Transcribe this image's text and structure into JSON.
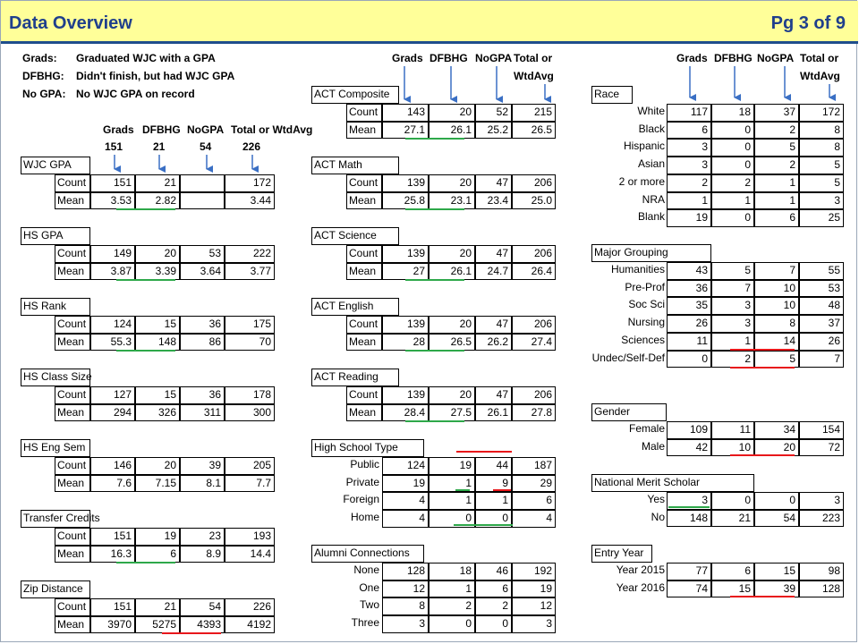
{
  "header": {
    "title": "Data Overview",
    "page": "Pg 3 of 9"
  },
  "legend": [
    {
      "term": "Grads:",
      "def": "Graduated WJC with a GPA"
    },
    {
      "term": "DFBHG:",
      "def": "Didn't finish, but had WJC GPA"
    },
    {
      "term": "No GPA:",
      "def": "No WJC GPA on record"
    }
  ],
  "left_headers": {
    "grads": "Grads",
    "dfbhg": "DFBHG",
    "nogpa": "NoGPA",
    "total": "Total or WtdAvg",
    "n_grads": "151",
    "n_dfbhg": "21",
    "n_nogpa": "54",
    "n_total": "226"
  },
  "mid_headers": {
    "grads": "Grads",
    "dfbhg": "DFBHG",
    "nogpa": "NoGPA",
    "total1": "Total or",
    "total2": "WtdAvg"
  },
  "right_headers": {
    "grads": "Grads",
    "dfbhg": "DFBHG",
    "nogpa": "NoGPA",
    "total1": "Total or",
    "total2": "WtdAvg"
  },
  "col1": [
    {
      "title": "WJC GPA",
      "rows": [
        {
          "label": "Count",
          "v": [
            "151",
            "21",
            "",
            "172"
          ]
        },
        {
          "label": "Mean",
          "v": [
            "3.53",
            "2.82",
            "",
            "3.44"
          ]
        }
      ]
    },
    {
      "title": "HS GPA",
      "rows": [
        {
          "label": "Count",
          "v": [
            "149",
            "20",
            "53",
            "222"
          ]
        },
        {
          "label": "Mean",
          "v": [
            "3.87",
            "3.39",
            "3.64",
            "3.77"
          ]
        }
      ]
    },
    {
      "title": "HS Rank",
      "rows": [
        {
          "label": "Count",
          "v": [
            "124",
            "15",
            "36",
            "175"
          ]
        },
        {
          "label": "Mean",
          "v": [
            "55.3",
            "148",
            "86",
            "70"
          ]
        }
      ]
    },
    {
      "title": "HS Class Size",
      "rows": [
        {
          "label": "Count",
          "v": [
            "127",
            "15",
            "36",
            "178"
          ]
        },
        {
          "label": "Mean",
          "v": [
            "294",
            "326",
            "311",
            "300"
          ]
        }
      ]
    },
    {
      "title": "HS Eng Sem",
      "rows": [
        {
          "label": "Count",
          "v": [
            "146",
            "20",
            "39",
            "205"
          ]
        },
        {
          "label": "Mean",
          "v": [
            "7.6",
            "7.15",
            "8.1",
            "7.7"
          ]
        }
      ]
    },
    {
      "title": "Transfer Credits",
      "rows": [
        {
          "label": "Count",
          "v": [
            "151",
            "19",
            "23",
            "193"
          ]
        },
        {
          "label": "Mean",
          "v": [
            "16.3",
            "6",
            "8.9",
            "14.4"
          ]
        }
      ]
    },
    {
      "title": "Zip Distance",
      "rows": [
        {
          "label": "Count",
          "v": [
            "151",
            "21",
            "54",
            "226"
          ]
        },
        {
          "label": "Mean",
          "v": [
            "3970",
            "5275",
            "4393",
            "4192"
          ]
        }
      ]
    }
  ],
  "col2": [
    {
      "title": "ACT Composite",
      "rows": [
        {
          "label": "Count",
          "v": [
            "143",
            "20",
            "52",
            "215"
          ]
        },
        {
          "label": "Mean",
          "v": [
            "27.1",
            "26.1",
            "25.2",
            "26.5"
          ]
        }
      ]
    },
    {
      "title": "ACT Math",
      "rows": [
        {
          "label": "Count",
          "v": [
            "139",
            "20",
            "47",
            "206"
          ]
        },
        {
          "label": "Mean",
          "v": [
            "25.8",
            "23.1",
            "23.4",
            "25.0"
          ]
        }
      ]
    },
    {
      "title": "ACT Science",
      "rows": [
        {
          "label": "Count",
          "v": [
            "139",
            "20",
            "47",
            "206"
          ]
        },
        {
          "label": "Mean",
          "v": [
            "27",
            "26.1",
            "24.7",
            "26.4"
          ]
        }
      ]
    },
    {
      "title": "ACT English",
      "rows": [
        {
          "label": "Count",
          "v": [
            "139",
            "20",
            "47",
            "206"
          ]
        },
        {
          "label": "Mean",
          "v": [
            "28",
            "26.5",
            "26.2",
            "27.4"
          ]
        }
      ]
    },
    {
      "title": "ACT Reading",
      "rows": [
        {
          "label": "Count",
          "v": [
            "139",
            "20",
            "47",
            "206"
          ]
        },
        {
          "label": "Mean",
          "v": [
            "28.4",
            "27.5",
            "26.1",
            "27.8"
          ]
        }
      ]
    },
    {
      "title": "High School Type",
      "rows": [
        {
          "label": "Public",
          "v": [
            "124",
            "19",
            "44",
            "187"
          ]
        },
        {
          "label": "Private",
          "v": [
            "19",
            "1",
            "9",
            "29"
          ]
        },
        {
          "label": "Foreign",
          "v": [
            "4",
            "1",
            "1",
            "6"
          ]
        },
        {
          "label": "Home",
          "v": [
            "4",
            "0",
            "0",
            "4"
          ]
        }
      ]
    },
    {
      "title": "Alumni Connections",
      "rows": [
        {
          "label": "None",
          "v": [
            "128",
            "18",
            "46",
            "192"
          ]
        },
        {
          "label": "One",
          "v": [
            "12",
            "1",
            "6",
            "19"
          ]
        },
        {
          "label": "Two",
          "v": [
            "8",
            "2",
            "2",
            "12"
          ]
        },
        {
          "label": "Three",
          "v": [
            "3",
            "0",
            "0",
            "3"
          ]
        }
      ]
    }
  ],
  "col3": [
    {
      "title": "Race",
      "rows": [
        {
          "label": "White",
          "v": [
            "117",
            "18",
            "37",
            "172"
          ]
        },
        {
          "label": "Black",
          "v": [
            "6",
            "0",
            "2",
            "8"
          ]
        },
        {
          "label": "Hispanic",
          "v": [
            "3",
            "0",
            "5",
            "8"
          ]
        },
        {
          "label": "Asian",
          "v": [
            "3",
            "0",
            "2",
            "5"
          ]
        },
        {
          "label": "2 or more",
          "v": [
            "2",
            "2",
            "1",
            "5"
          ]
        },
        {
          "label": "NRA",
          "v": [
            "1",
            "1",
            "1",
            "3"
          ]
        },
        {
          "label": "Blank",
          "v": [
            "19",
            "0",
            "6",
            "25"
          ]
        }
      ]
    },
    {
      "title": "Major Grouping",
      "rows": [
        {
          "label": "Humanities",
          "v": [
            "43",
            "5",
            "7",
            "55"
          ]
        },
        {
          "label": "Pre-Prof",
          "v": [
            "36",
            "7",
            "10",
            "53"
          ]
        },
        {
          "label": "Soc Sci",
          "v": [
            "35",
            "3",
            "10",
            "48"
          ]
        },
        {
          "label": "Nursing",
          "v": [
            "26",
            "3",
            "8",
            "37"
          ]
        },
        {
          "label": "Sciences",
          "v": [
            "11",
            "1",
            "14",
            "26"
          ]
        },
        {
          "label": "Undec/Self-Def",
          "v": [
            "0",
            "2",
            "5",
            "7"
          ]
        }
      ]
    },
    {
      "title": "Gender",
      "rows": [
        {
          "label": "Female",
          "v": [
            "109",
            "11",
            "34",
            "154"
          ]
        },
        {
          "label": "Male",
          "v": [
            "42",
            "10",
            "20",
            "72"
          ]
        }
      ]
    },
    {
      "title": "National Merit Scholar",
      "rows": [
        {
          "label": "Yes",
          "v": [
            "3",
            "0",
            "0",
            "3"
          ]
        },
        {
          "label": "No",
          "v": [
            "148",
            "21",
            "54",
            "223"
          ]
        }
      ]
    },
    {
      "title": "Entry Year",
      "rows": [
        {
          "label": "Year 2015",
          "v": [
            "77",
            "6",
            "15",
            "98"
          ]
        },
        {
          "label": "Year 2016",
          "v": [
            "74",
            "15",
            "39",
            "128"
          ]
        }
      ]
    }
  ],
  "colors": {
    "header_bg": "#ffff99",
    "title": "#1f3f8c",
    "arrow": "#3a6fc4",
    "good": "#2ea84a",
    "bad": "#e8171b"
  }
}
